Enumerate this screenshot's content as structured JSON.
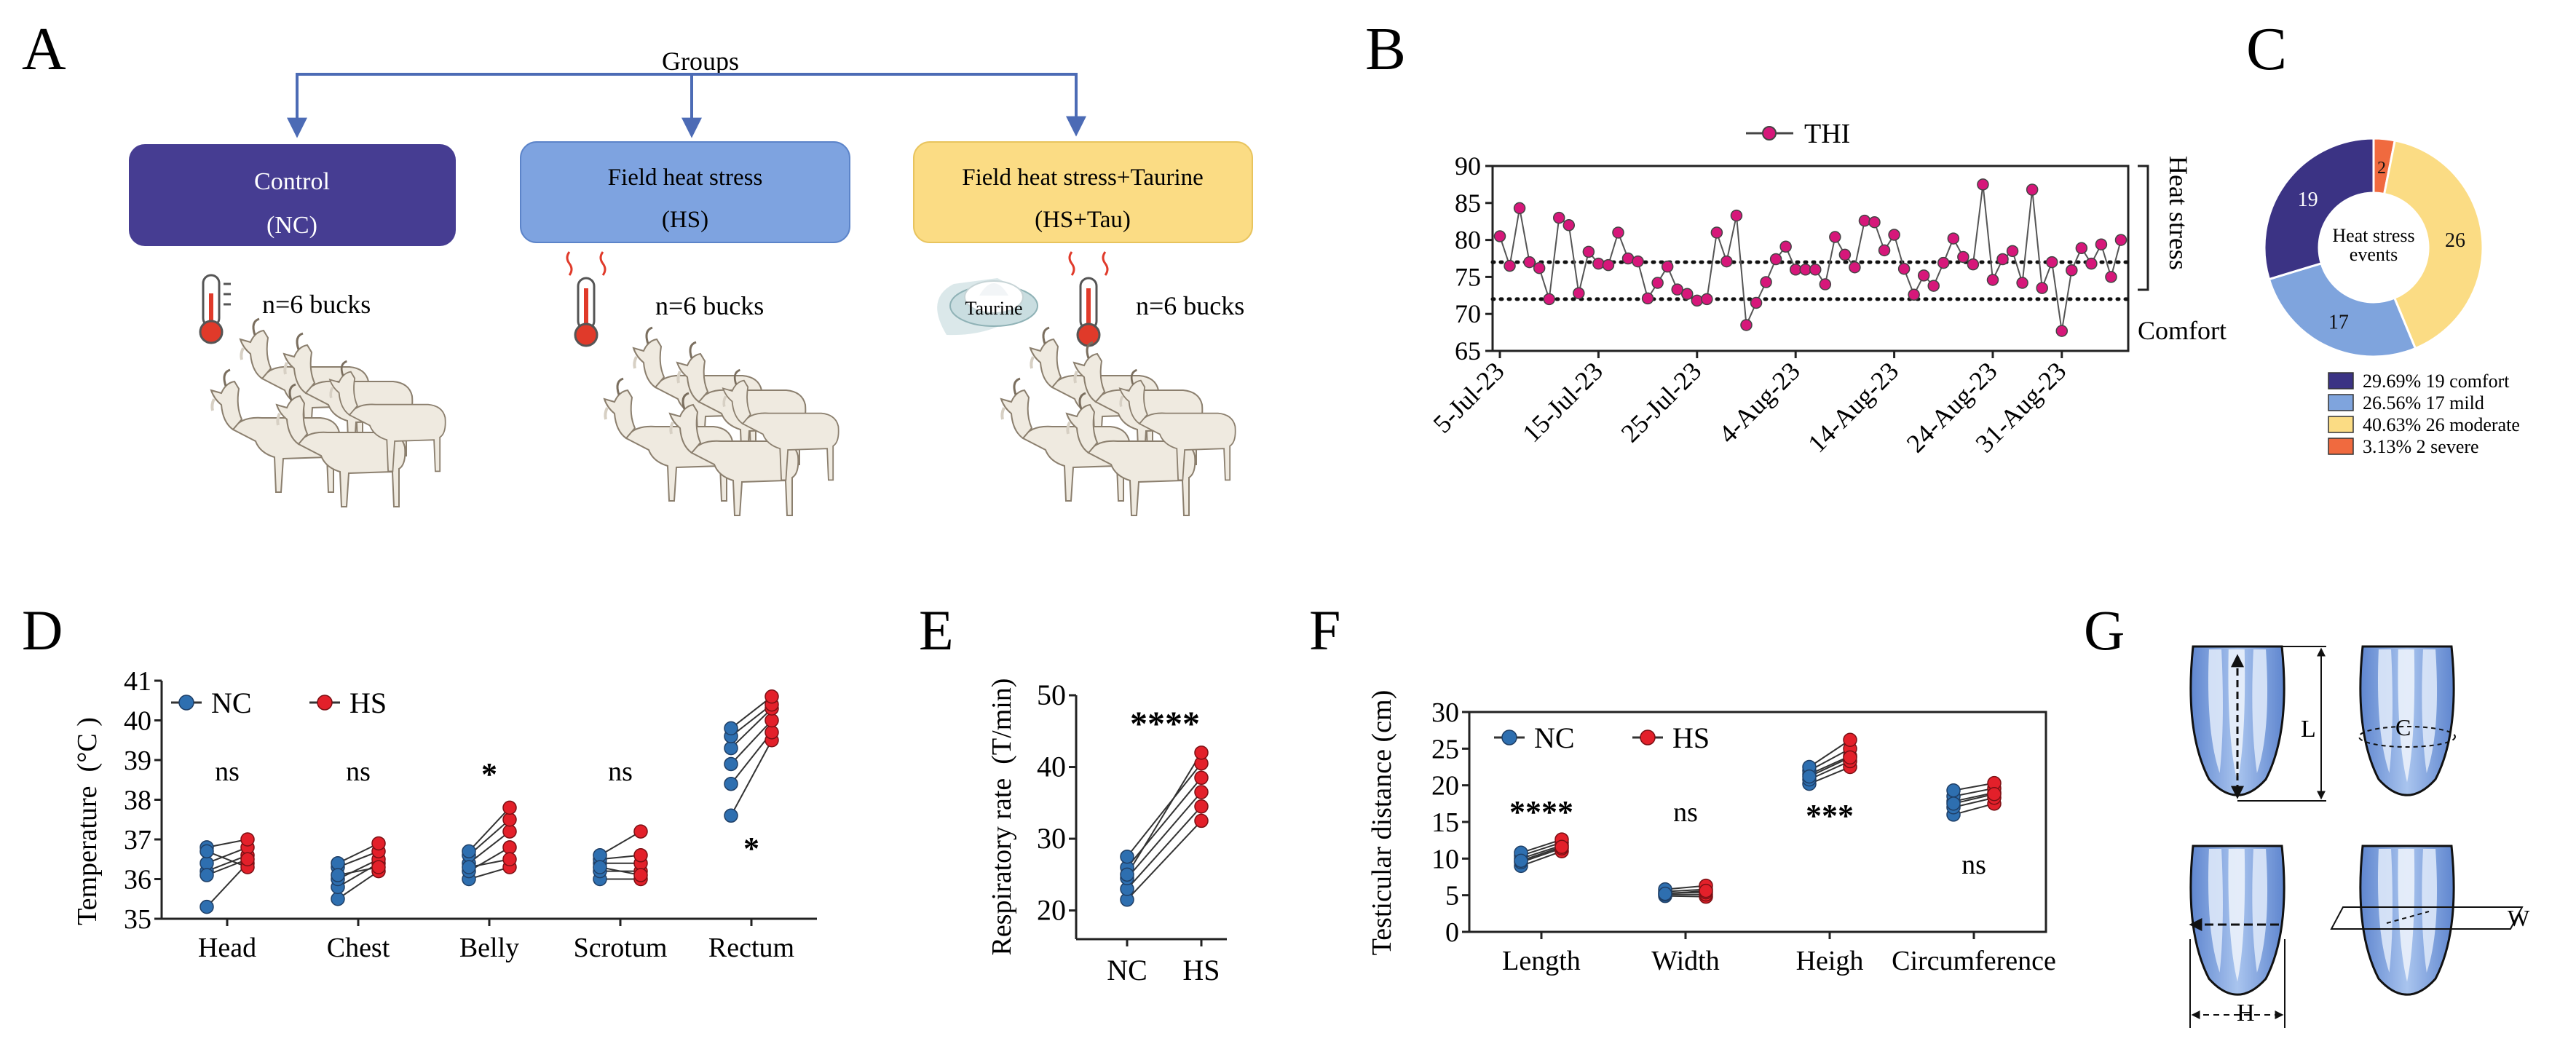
{
  "panel_labels": {
    "a": "A",
    "b": "B",
    "c": "C",
    "d": "D",
    "e": "E",
    "f": "F",
    "g": "G"
  },
  "panel_a": {
    "groups_label": "Groups",
    "boxes": [
      {
        "line1": "Control",
        "line2": "(NC)",
        "fill": "#463d92",
        "text_color": "#ffffff"
      },
      {
        "line1": "Field heat stress",
        "line2": "(HS)",
        "fill": "#7ea3e0",
        "text_color": "#111111"
      },
      {
        "line1": "Field heat stress+Taurine",
        "line2": "(HS+Tau)",
        "fill": "#fbdc84",
        "text_color": "#111111"
      }
    ],
    "counts": [
      "n=6 bucks",
      "n=6 bucks",
      "n=6 bucks"
    ],
    "taurine_label": "Taurine",
    "arrow_color": "#4c6bb5"
  },
  "chart_data": [
    {
      "id": "B",
      "type": "line",
      "legend": [
        "THI"
      ],
      "x": [
        "5-Jul-23",
        "6-Jul-23",
        "7-Jul-23",
        "8-Jul-23",
        "9-Jul-23",
        "10-Jul-23",
        "11-Jul-23",
        "12-Jul-23",
        "13-Jul-23",
        "14-Jul-23",
        "15-Jul-23",
        "16-Jul-23",
        "17-Jul-23",
        "18-Jul-23",
        "19-Jul-23",
        "20-Jul-23",
        "21-Jul-23",
        "22-Jul-23",
        "23-Jul-23",
        "24-Jul-23",
        "25-Jul-23",
        "26-Jul-23",
        "27-Jul-23",
        "28-Jul-23",
        "29-Jul-23",
        "30-Jul-23",
        "31-Jul-23",
        "1-Aug-23",
        "2-Aug-23",
        "3-Aug-23",
        "4-Aug-23",
        "5-Aug-23",
        "6-Aug-23",
        "7-Aug-23",
        "8-Aug-23",
        "9-Aug-23",
        "10-Aug-23",
        "11-Aug-23",
        "12-Aug-23",
        "13-Aug-23",
        "14-Aug-23",
        "15-Aug-23",
        "16-Aug-23",
        "17-Aug-23",
        "18-Aug-23",
        "19-Aug-23",
        "20-Aug-23",
        "21-Aug-23",
        "22-Aug-23",
        "23-Aug-23",
        "24-Aug-23",
        "25-Aug-23",
        "26-Aug-23",
        "27-Aug-23",
        "28-Aug-23",
        "29-Aug-23",
        "30-Aug-23",
        "31-Aug-23",
        "1-Sep-23",
        "2-Sep-23",
        "3-Sep-23",
        "4-Sep-23",
        "5-Sep-23",
        "6-Sep-23"
      ],
      "series": [
        {
          "name": "THI",
          "color": "#d6177a",
          "values": [
            80.5,
            76.5,
            84.3,
            77.0,
            76.2,
            72.0,
            83.0,
            82.0,
            72.8,
            78.4,
            76.8,
            76.6,
            81.0,
            77.5,
            77.1,
            72.1,
            74.2,
            76.4,
            73.3,
            72.7,
            71.8,
            72.0,
            81.0,
            77.1,
            83.3,
            68.5,
            71.5,
            74.3,
            77.4,
            79.1,
            76.0,
            76.0,
            76.0,
            74.0,
            80.4,
            78.0,
            76.3,
            82.6,
            82.4,
            78.6,
            80.7,
            76.1,
            72.6,
            75.2,
            73.8,
            76.9,
            80.2,
            77.7,
            76.7,
            87.5,
            74.6,
            77.4,
            78.5,
            74.2,
            86.8,
            73.5,
            77.0,
            67.7,
            75.9,
            78.9,
            76.8,
            79.4,
            75.0,
            80.0
          ]
        }
      ],
      "ylim": [
        65,
        90
      ],
      "yticks": [
        65,
        70,
        75,
        80,
        85,
        90
      ],
      "xtick_labels": [
        "5-Jul-23",
        "15-Jul-23",
        "25-Jul-23",
        "4-Aug-23",
        "14-Aug-23",
        "24-Aug-23",
        "31-Aug-23"
      ],
      "reference_lines": [
        77,
        72
      ],
      "annotations": [
        "Heat stress",
        "Comfort"
      ]
    },
    {
      "id": "C",
      "type": "pie",
      "center_label": [
        "Heat stress",
        "events"
      ],
      "slices": [
        {
          "label": "comfort",
          "count": 19,
          "percent": "29.69%",
          "color": "#3b3384",
          "legend": "29.69%  19 comfort"
        },
        {
          "label": "mild",
          "count": 17,
          "percent": "26.56%",
          "color": "#7fa4dd",
          "legend": "26.56%  17 mild"
        },
        {
          "label": "moderate",
          "count": 26,
          "percent": "40.63%",
          "color": "#fbdc84",
          "legend": "40.63%  26 moderate"
        },
        {
          "label": "severe",
          "count": 2,
          "percent": "3.13%",
          "color": "#f06a3f",
          "legend": "3.13%  2 severe"
        }
      ]
    },
    {
      "id": "D",
      "type": "scatter",
      "ylabel": "Temperature  (°C )",
      "categories": [
        "Head",
        "Chest",
        "Belly",
        "Scrotum",
        "Rectum"
      ],
      "ylim": [
        35,
        41
      ],
      "yticks": [
        35,
        36,
        37,
        38,
        39,
        40,
        41
      ],
      "legend": [
        "NC",
        "HS"
      ],
      "significance": [
        "ns",
        "ns",
        "*",
        "ns",
        "*"
      ],
      "paired": [
        {
          "nc": [
            35.3,
            36.2,
            36.4,
            36.8,
            36.7,
            36.1
          ],
          "hs": [
            36.4,
            36.6,
            36.8,
            37.0,
            36.3,
            36.5
          ]
        },
        {
          "nc": [
            35.5,
            35.8,
            36.0,
            36.3,
            36.4,
            36.1
          ],
          "hs": [
            36.2,
            36.4,
            36.5,
            36.7,
            36.9,
            36.3
          ]
        },
        {
          "nc": [
            36.0,
            36.2,
            36.4,
            36.6,
            36.7,
            36.3
          ],
          "hs": [
            36.3,
            36.8,
            37.2,
            37.5,
            37.8,
            36.5
          ]
        },
        {
          "nc": [
            36.0,
            36.2,
            36.4,
            36.5,
            36.6,
            36.3
          ],
          "hs": [
            36.0,
            36.2,
            36.4,
            36.6,
            37.2,
            36.1
          ]
        },
        {
          "nc": [
            37.6,
            38.4,
            38.9,
            39.3,
            39.6,
            39.8
          ],
          "hs": [
            39.5,
            39.7,
            40.0,
            40.3,
            40.4,
            40.6
          ]
        }
      ],
      "colors": {
        "nc": "#2e6fb0",
        "hs": "#e3202a"
      }
    },
    {
      "id": "E",
      "type": "scatter",
      "ylabel": "Respiratory rate  (T/min)",
      "categories": [
        "NC",
        "HS"
      ],
      "ylim": [
        16,
        50
      ],
      "yticks": [
        20,
        30,
        40,
        50
      ],
      "significance": [
        "****"
      ],
      "nc": [
        21.5,
        23.0,
        24.5,
        26.0,
        27.5,
        25.0
      ],
      "hs": [
        32.5,
        34.5,
        36.5,
        38.5,
        40.5,
        42.0
      ]
    },
    {
      "id": "F",
      "type": "scatter",
      "ylabel": "Testicular distance (cm)",
      "categories": [
        "Length",
        "Width",
        "Heigh",
        "Circumference"
      ],
      "ylim": [
        0,
        30
      ],
      "yticks": [
        0,
        5,
        10,
        15,
        20,
        25,
        30
      ],
      "legend": [
        "NC",
        "HS"
      ],
      "significance": [
        "****",
        "ns",
        "***",
        "ns"
      ],
      "paired": [
        {
          "nc": [
            9.0,
            9.5,
            10.0,
            10.4,
            10.8,
            9.7
          ],
          "hs": [
            11.0,
            11.4,
            11.8,
            12.2,
            12.6,
            11.6
          ]
        },
        {
          "nc": [
            4.9,
            5.1,
            5.3,
            5.5,
            5.8,
            5.2
          ],
          "hs": [
            4.8,
            5.1,
            5.4,
            5.8,
            6.3,
            5.6
          ]
        },
        {
          "nc": [
            20.2,
            20.8,
            21.5,
            22.0,
            22.5,
            21.2
          ],
          "hs": [
            22.5,
            23.3,
            24.0,
            25.0,
            26.2,
            23.8
          ]
        },
        {
          "nc": [
            16.0,
            17.0,
            17.8,
            18.5,
            19.3,
            17.5
          ],
          "hs": [
            17.5,
            18.3,
            19.0,
            19.6,
            20.3,
            18.8
          ]
        }
      ]
    }
  ],
  "panel_g": {
    "labels": [
      "L",
      "C",
      "H",
      "W"
    ]
  }
}
